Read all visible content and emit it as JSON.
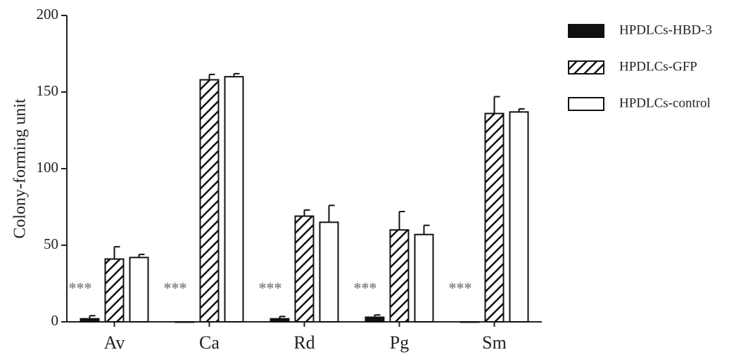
{
  "chart_data": {
    "type": "bar",
    "y_label": "Colony-forming unit",
    "categories": [
      "Av",
      "Ca",
      "Rd",
      "Pg",
      "Sm"
    ],
    "series": [
      {
        "name": "HPDLCs-HBD-3",
        "color": "#111111",
        "pattern": "solid",
        "values": [
          2,
          0,
          2,
          3,
          0
        ],
        "errors": [
          2,
          0,
          1.5,
          1.5,
          0
        ]
      },
      {
        "name": "HPDLCs-GFP",
        "color": "#ffffff",
        "pattern": "hatch",
        "values": [
          41,
          158,
          69,
          60,
          136
        ],
        "errors": [
          8,
          3.5,
          4,
          12,
          11
        ]
      },
      {
        "name": "HPDLCs-control",
        "color": "#ffffff",
        "pattern": "solid",
        "values": [
          42,
          160,
          65,
          57,
          137
        ],
        "errors": [
          2,
          2,
          11,
          6,
          2
        ]
      }
    ],
    "annotations": [
      "***",
      "***",
      "***",
      "***",
      "***"
    ],
    "ylim": [
      0,
      200
    ],
    "yticks": [
      0,
      50,
      100,
      150,
      200
    ]
  }
}
